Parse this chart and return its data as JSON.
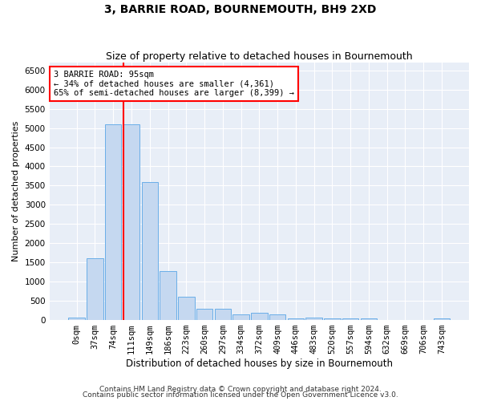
{
  "title": "3, BARRIE ROAD, BOURNEMOUTH, BH9 2XD",
  "subtitle": "Size of property relative to detached houses in Bournemouth",
  "xlabel": "Distribution of detached houses by size in Bournemouth",
  "ylabel": "Number of detached properties",
  "footnote1": "Contains HM Land Registry data © Crown copyright and database right 2024.",
  "footnote2": "Contains public sector information licensed under the Open Government Licence v3.0.",
  "bar_labels": [
    "0sqm",
    "37sqm",
    "74sqm",
    "111sqm",
    "149sqm",
    "186sqm",
    "223sqm",
    "260sqm",
    "297sqm",
    "334sqm",
    "372sqm",
    "409sqm",
    "446sqm",
    "483sqm",
    "520sqm",
    "557sqm",
    "594sqm",
    "632sqm",
    "669sqm",
    "706sqm",
    "743sqm"
  ],
  "bar_values": [
    70,
    1600,
    5100,
    5100,
    3600,
    1280,
    600,
    300,
    300,
    150,
    200,
    150,
    50,
    70,
    50,
    50,
    50,
    0,
    0,
    0,
    50
  ],
  "bar_color": "#c5d8f0",
  "bar_edge_color": "#6aaee8",
  "vline_x": 2.57,
  "vline_color": "red",
  "annotation_text": "3 BARRIE ROAD: 95sqm\n← 34% of detached houses are smaller (4,361)\n65% of semi-detached houses are larger (8,399) →",
  "annotation_box_color": "white",
  "annotation_box_edge": "red",
  "ylim": [
    0,
    6700
  ],
  "yticks": [
    0,
    500,
    1000,
    1500,
    2000,
    2500,
    3000,
    3500,
    4000,
    4500,
    5000,
    5500,
    6000,
    6500
  ],
  "axes_bg_color": "#e8eef7",
  "fig_bg_color": "white",
  "grid_color": "white",
  "title_fontsize": 10,
  "subtitle_fontsize": 9,
  "tick_fontsize": 7.5,
  "ylabel_fontsize": 8,
  "xlabel_fontsize": 8.5,
  "annot_fontsize": 7.5,
  "footnote_fontsize": 6.5
}
